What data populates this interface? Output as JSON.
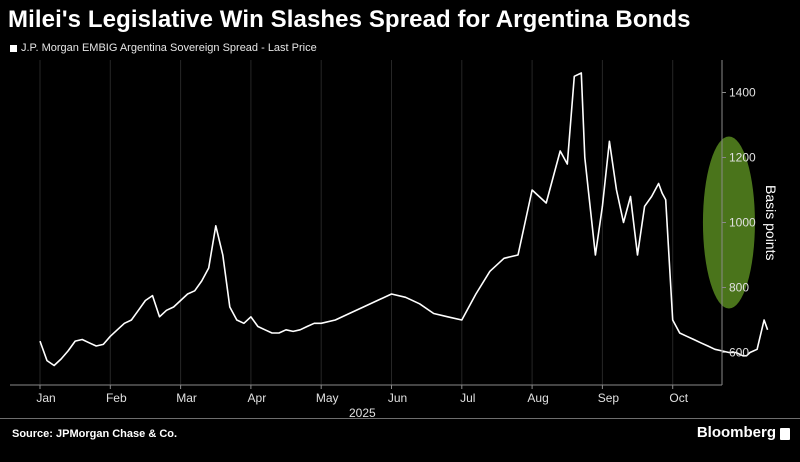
{
  "chart_data": {
    "type": "line",
    "title": "Milei's Legislative Win Slashes Spread for Argentina Bonds",
    "legend": [
      "J.P. Morgan EMBIG Argentina Sovereign Spread - Last Price"
    ],
    "ylabel": "Basis points",
    "xlabel": "2025",
    "ylim": [
      500,
      1500
    ],
    "yticks": [
      600,
      800,
      1000,
      1200,
      1400
    ],
    "xticks": [
      "Jan",
      "Feb",
      "Mar",
      "Apr",
      "May",
      "Jun",
      "Jul",
      "Aug",
      "Sep",
      "Oct"
    ],
    "xlim": [
      0,
      10.45
    ],
    "annotations": [
      "highlighted drop in late October"
    ],
    "series": [
      {
        "name": "J.P. Morgan EMBIG Argentina Sovereign Spread - Last Price",
        "x": [
          0,
          0.1,
          0.2,
          0.3,
          0.4,
          0.5,
          0.6,
          0.7,
          0.8,
          0.9,
          1.0,
          1.1,
          1.2,
          1.3,
          1.4,
          1.5,
          1.6,
          1.7,
          1.8,
          1.9,
          2.0,
          2.1,
          2.2,
          2.3,
          2.4,
          2.5,
          2.6,
          2.7,
          2.8,
          2.9,
          3.0,
          3.1,
          3.2,
          3.3,
          3.4,
          3.5,
          3.6,
          3.7,
          3.8,
          3.9,
          4.0,
          4.2,
          4.4,
          4.6,
          4.8,
          5.0,
          5.2,
          5.4,
          5.6,
          5.8,
          6.0,
          6.2,
          6.4,
          6.6,
          6.8,
          7.0,
          7.2,
          7.4,
          7.5,
          7.6,
          7.7,
          7.75,
          7.8,
          7.9,
          8.0,
          8.1,
          8.2,
          8.3,
          8.4,
          8.5,
          8.6,
          8.7,
          8.8,
          8.85,
          8.9,
          9.0,
          9.1,
          9.2,
          9.3,
          9.4,
          9.5,
          9.6,
          9.7,
          9.8,
          9.9,
          10.0,
          10.05,
          10.1,
          10.2,
          10.3,
          10.35
        ],
        "values": [
          635,
          575,
          560,
          580,
          605,
          635,
          640,
          630,
          620,
          625,
          650,
          670,
          690,
          700,
          730,
          760,
          775,
          710,
          730,
          740,
          760,
          780,
          790,
          820,
          860,
          990,
          900,
          740,
          700,
          690,
          710,
          680,
          670,
          660,
          660,
          670,
          665,
          670,
          680,
          690,
          690,
          700,
          720,
          740,
          760,
          780,
          770,
          750,
          720,
          710,
          700,
          780,
          850,
          890,
          900,
          1100,
          1060,
          1220,
          1180,
          1450,
          1460,
          1200,
          1100,
          900,
          1050,
          1250,
          1100,
          1000,
          1080,
          900,
          1050,
          1080,
          1120,
          1090,
          1070,
          700,
          660,
          650,
          640,
          630,
          620,
          610,
          605,
          600,
          600,
          590,
          590,
          600,
          610,
          700,
          670
        ]
      }
    ]
  },
  "footer": {
    "source": "Source: JPMorgan Chase & Co.",
    "brand": "Bloomberg"
  },
  "colors": {
    "background": "#000000",
    "line": "#ffffff",
    "highlight": "#4e7a1c"
  }
}
